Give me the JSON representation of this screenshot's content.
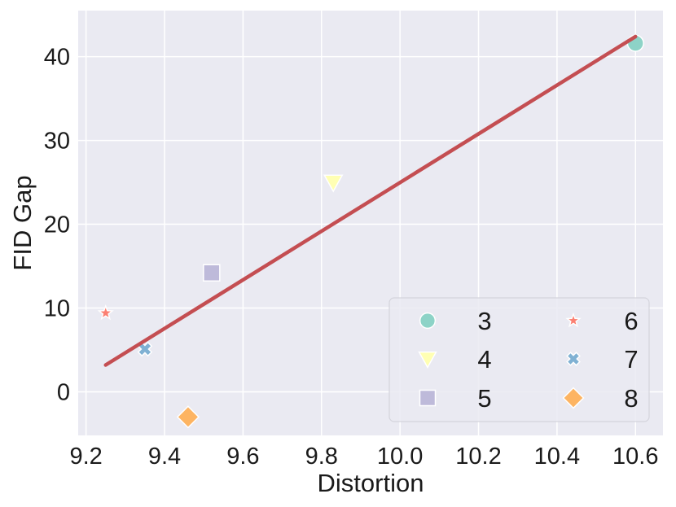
{
  "chart_data": {
    "type": "scatter",
    "xlabel": "Distortion",
    "ylabel": "FID Gap",
    "xlim": [
      9.18,
      10.67
    ],
    "ylim": [
      -5.2,
      45.5
    ],
    "x_ticks": [
      "9.2",
      "9.4",
      "9.6",
      "9.8",
      "10.0",
      "10.2",
      "10.4",
      "10.6"
    ],
    "x_tick_values": [
      9.2,
      9.4,
      9.6,
      9.8,
      10.0,
      10.2,
      10.4,
      10.6
    ],
    "y_ticks": [
      "0",
      "10",
      "20",
      "30",
      "40"
    ],
    "y_tick_values": [
      0,
      10,
      20,
      30,
      40
    ],
    "grid": true,
    "background": "#eaeaf2",
    "legend_placement": "lower-right",
    "series": [
      {
        "name": "3",
        "marker": "circle",
        "color": "#8dd3c7",
        "x": 10.6,
        "y": 41.6
      },
      {
        "name": "4",
        "marker": "triangle-down",
        "color": "#ffffb3",
        "x": 9.83,
        "y": 25.0
      },
      {
        "name": "5",
        "marker": "square",
        "color": "#bebada",
        "x": 9.52,
        "y": 14.2
      },
      {
        "name": "6",
        "marker": "star",
        "color": "#fb8072",
        "x": 9.25,
        "y": 9.4
      },
      {
        "name": "7",
        "marker": "x",
        "color": "#80b1d3",
        "x": 9.35,
        "y": 5.1
      },
      {
        "name": "8",
        "marker": "diamond",
        "color": "#fdb462",
        "x": 9.46,
        "y": -3.0
      }
    ],
    "fit_line": {
      "color": "#c44e52",
      "x": [
        9.25,
        10.6
      ],
      "y": [
        3.2,
        42.4
      ]
    }
  }
}
